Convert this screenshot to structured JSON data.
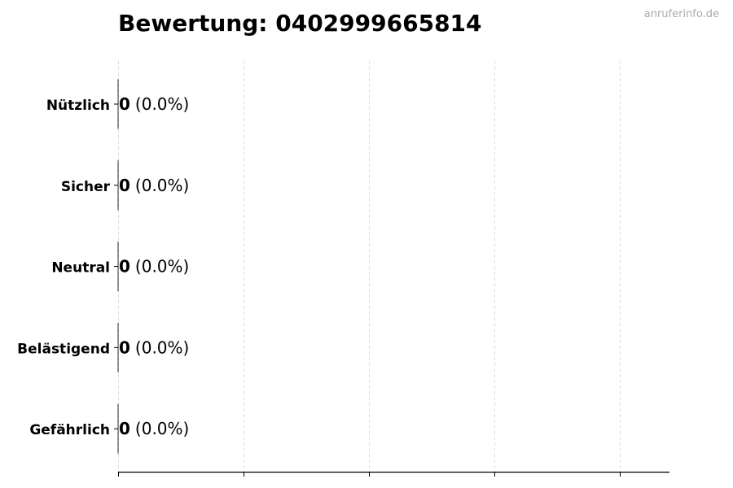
{
  "title": "Bewertung: 0402999665814",
  "watermark": "anruferinfo.de",
  "chart_data": {
    "type": "bar",
    "orientation": "horizontal",
    "categories": [
      "Nützlich",
      "Sicher",
      "Neutral",
      "Belästigend",
      "Gefährlich"
    ],
    "values": [
      0,
      0,
      0,
      0,
      0
    ],
    "labels": [
      {
        "count": "0",
        "pct": "(0.0%)"
      },
      {
        "count": "0",
        "pct": "(0.0%)"
      },
      {
        "count": "0",
        "pct": "(0.0%)"
      },
      {
        "count": "0",
        "pct": "(0.0%)"
      },
      {
        "count": "0",
        "pct": "(0.0%)"
      }
    ],
    "xlabel": "",
    "ylabel": "",
    "grid": "x dashed",
    "x_tick_labels": "none",
    "bar_edge_color": "#333333",
    "grid_color": "#dddddd"
  }
}
